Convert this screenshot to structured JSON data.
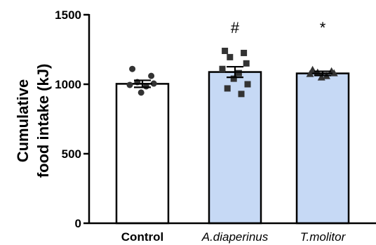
{
  "chart_data": {
    "type": "bar",
    "categories": [
      "Control",
      "A.diaperinus",
      "T.molitor"
    ],
    "category_italic": [
      false,
      true,
      true
    ],
    "values": [
      1003,
      1088,
      1078
    ],
    "sem": [
      25,
      38,
      15
    ],
    "bar_colors": [
      "#ffffff",
      "#c6d9f5",
      "#c6d9f5"
    ],
    "point_shapes": [
      "circle",
      "square",
      "triangle"
    ],
    "points": [
      [
        1110,
        1060,
        1015,
        1005,
        995,
        985,
        940
      ],
      [
        1240,
        1225,
        1195,
        1150,
        1110,
        1080,
        1040,
        1000,
        970,
        930
      ],
      [
        1105,
        1095,
        1085,
        1080,
        1075,
        1060,
        1050
      ]
    ],
    "annotations": [
      "",
      "#",
      "*"
    ],
    "ylabel_lines": [
      "Cumulative",
      "food intake (kJ)"
    ],
    "xlabel": "",
    "ylim": [
      0,
      1500
    ],
    "yticks": [
      0,
      500,
      1000,
      1500
    ],
    "grid": false,
    "axis_color": "#000000",
    "point_color": "#333333"
  }
}
